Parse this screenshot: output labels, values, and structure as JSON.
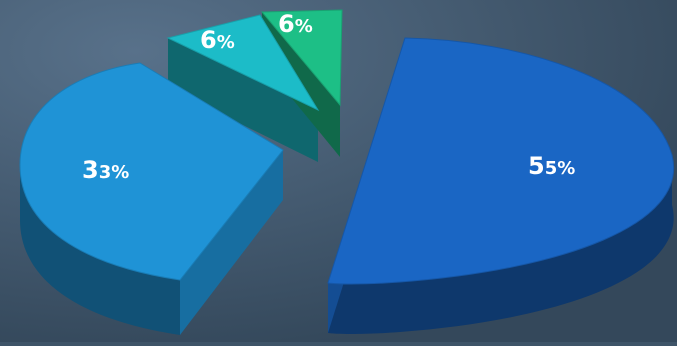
{
  "chart_data": {
    "type": "pie",
    "style": "3d-exploded",
    "slices": [
      {
        "value": 55,
        "label_major": "5",
        "label_minor": "5%",
        "color": "#1a66c4"
      },
      {
        "value": 33,
        "label_major": "3",
        "label_minor": "3%",
        "color": "#1f93d6"
      },
      {
        "value": 6,
        "label_major": "6",
        "label_minor": "%",
        "color": "#1cbcc8"
      },
      {
        "value": 6,
        "label_major": "6",
        "label_minor": "%",
        "color": "#1dbf86"
      }
    ],
    "background_color": "#3e5468",
    "title": "",
    "legend": "none"
  }
}
